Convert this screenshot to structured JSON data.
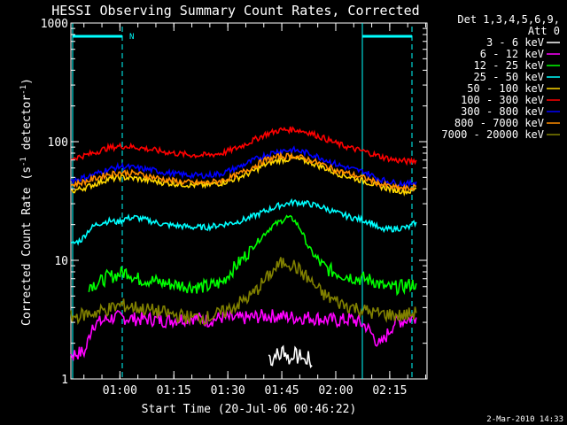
{
  "chart_data": {
    "type": "line",
    "title": "HESSI Observing Summary Count Rates, Corrected",
    "xlabel": "Start Time (20-Jul-06 00:46:22)",
    "ylabel": "Corrected Count Rate (s",
    "ylabel_sup1": "-1",
    "ylabel_mid": " detector",
    "ylabel_sup2": "-1",
    "ylabel_end": ")",
    "y_scale": "log",
    "ylim": [
      1,
      1000
    ],
    "xlim_minutes": [
      0,
      99
    ],
    "x_ticks": [
      {
        "t": 13.63,
        "label": "01:00"
      },
      {
        "t": 28.63,
        "label": "01:15"
      },
      {
        "t": 43.63,
        "label": "01:30"
      },
      {
        "t": 58.63,
        "label": "01:45"
      },
      {
        "t": 73.63,
        "label": "02:00"
      },
      {
        "t": 88.63,
        "label": "02:15"
      }
    ],
    "y_ticks": [
      {
        "v": 1,
        "label": "1"
      },
      {
        "v": 10,
        "label": "10"
      },
      {
        "v": 100,
        "label": "100"
      },
      {
        "v": 1000,
        "label": "1000"
      }
    ],
    "annotation": "N",
    "legend": {
      "position": "right",
      "header": [
        "Det 1,3,4,5,6,9,",
        "Att 0"
      ]
    },
    "series": [
      {
        "name": "3 - 6 keV",
        "color": "#ffffff",
        "x": [
          55,
          56,
          57,
          58,
          59,
          60,
          61,
          62,
          63,
          64,
          65,
          66,
          67
        ],
        "y": [
          1.6,
          1.4,
          1.7,
          1.5,
          1.8,
          1.6,
          1.4,
          1.7,
          1.5,
          1.6,
          1.4,
          1.5,
          1.3
        ]
      },
      {
        "name": "6 - 12 keV",
        "color": "#ff00ff",
        "x": [
          0,
          4,
          6,
          8,
          10,
          12,
          14,
          18,
          22,
          26,
          30,
          34,
          38,
          42,
          46,
          50,
          54,
          58,
          62,
          66,
          70,
          74,
          78,
          82,
          86,
          90,
          94,
          96
        ],
        "y": [
          1.6,
          1.7,
          2.9,
          3.0,
          3.2,
          3.3,
          3.3,
          3.2,
          3.2,
          3.1,
          3.2,
          3.3,
          3.1,
          3.3,
          3.2,
          3.3,
          3.4,
          3.4,
          3.3,
          3.3,
          3.2,
          3.1,
          3.2,
          2.8,
          1.9,
          3.0,
          3.2,
          3.3
        ]
      },
      {
        "name": "12 - 25 keV",
        "color": "#00ff00",
        "x": [
          5,
          8,
          10,
          12,
          14,
          16,
          18,
          22,
          26,
          30,
          34,
          38,
          42,
          44,
          46,
          48,
          50,
          52,
          54,
          56,
          58,
          60,
          62,
          64,
          66,
          68,
          70,
          72,
          76,
          80,
          84,
          86,
          88,
          92,
          96
        ],
        "y": [
          6.2,
          6.5,
          7.2,
          7.4,
          7.8,
          8.0,
          7.0,
          6.8,
          6.4,
          6.2,
          6.0,
          6.0,
          6.5,
          7.8,
          9.0,
          10.5,
          12.5,
          14.5,
          17,
          19.5,
          21,
          23,
          22,
          18,
          13,
          10.5,
          9.0,
          8.2,
          7.5,
          7.0,
          6.8,
          6.2,
          5.8,
          6.0,
          6.4
        ]
      },
      {
        "name": "25 - 50 keV",
        "color": "#00ffff",
        "x": [
          0,
          3,
          5,
          7,
          9,
          11,
          13,
          15,
          18,
          22,
          26,
          30,
          34,
          38,
          42,
          46,
          50,
          54,
          58,
          62,
          66,
          70,
          74,
          78,
          82,
          84,
          86,
          90,
          94,
          96
        ],
        "y": [
          13.5,
          15,
          18,
          20,
          21,
          21.5,
          21,
          22.5,
          23,
          21.5,
          20,
          19.5,
          19,
          19,
          20,
          21,
          23,
          26,
          29,
          31,
          30,
          28,
          25,
          23,
          21.5,
          20.5,
          18,
          18.5,
          19,
          21
        ]
      },
      {
        "name": "50 - 100 keV",
        "color": "#ffd700",
        "x": [
          0,
          5,
          10,
          14,
          18,
          22,
          26,
          30,
          34,
          38,
          42,
          46,
          50,
          54,
          58,
          62,
          66,
          70,
          74,
          78,
          82,
          86,
          90,
          94,
          96
        ],
        "y": [
          38,
          42,
          48,
          50,
          49,
          47,
          45,
          44,
          43,
          43,
          45,
          49,
          55,
          64,
          70,
          72,
          68,
          61,
          54,
          50,
          46,
          42,
          39,
          38,
          40
        ]
      },
      {
        "name": "100 - 300 keV",
        "color": "#ff0000",
        "x": [
          0,
          5,
          10,
          14,
          18,
          22,
          26,
          30,
          34,
          38,
          42,
          46,
          50,
          54,
          58,
          62,
          66,
          70,
          74,
          78,
          82,
          86,
          90,
          94,
          96
        ],
        "y": [
          72,
          78,
          88,
          92,
          90,
          86,
          82,
          79,
          77,
          77,
          80,
          88,
          100,
          115,
          125,
          127,
          120,
          108,
          96,
          88,
          82,
          75,
          70,
          68,
          70
        ]
      },
      {
        "name": "300 - 800 keV",
        "color": "#0000ff",
        "x": [
          0,
          5,
          10,
          14,
          18,
          22,
          26,
          30,
          34,
          38,
          42,
          46,
          50,
          54,
          58,
          62,
          66,
          70,
          74,
          78,
          82,
          86,
          90,
          94,
          96
        ],
        "y": [
          47,
          51,
          58,
          62,
          60,
          58,
          55,
          53,
          52,
          52,
          54,
          60,
          68,
          77,
          84,
          85,
          80,
          72,
          64,
          59,
          55,
          48,
          45,
          44,
          46
        ]
      },
      {
        "name": "800 - 7000 keV",
        "color": "#ff8c00",
        "x": [
          0,
          5,
          10,
          14,
          18,
          22,
          26,
          30,
          34,
          38,
          42,
          46,
          50,
          54,
          58,
          62,
          66,
          70,
          74,
          78,
          82,
          86,
          90,
          94,
          96
        ],
        "y": [
          43,
          47,
          53,
          55,
          54,
          51,
          48,
          46,
          45,
          45,
          47,
          52,
          60,
          70,
          75,
          76,
          71,
          64,
          57,
          53,
          49,
          44,
          41,
          40,
          42
        ]
      },
      {
        "name": "7000 - 20000 keV",
        "color": "#808000",
        "x": [
          0,
          4,
          8,
          12,
          14,
          18,
          22,
          26,
          30,
          34,
          38,
          42,
          46,
          50,
          52,
          54,
          56,
          58,
          60,
          62,
          64,
          66,
          68,
          70,
          72,
          76,
          80,
          84,
          88,
          92,
          96
        ],
        "y": [
          3.3,
          3.5,
          3.7,
          4.0,
          4.2,
          4.0,
          3.8,
          3.6,
          3.4,
          3.3,
          3.3,
          3.6,
          4.2,
          5.0,
          5.8,
          6.8,
          8.0,
          9.2,
          9.8,
          9.0,
          8.0,
          7.0,
          6.0,
          5.2,
          4.8,
          4.2,
          3.9,
          3.6,
          3.5,
          3.4,
          3.6
        ]
      }
    ]
  },
  "footer": {
    "date_stamp": "2-Mar-2010 14:33"
  }
}
